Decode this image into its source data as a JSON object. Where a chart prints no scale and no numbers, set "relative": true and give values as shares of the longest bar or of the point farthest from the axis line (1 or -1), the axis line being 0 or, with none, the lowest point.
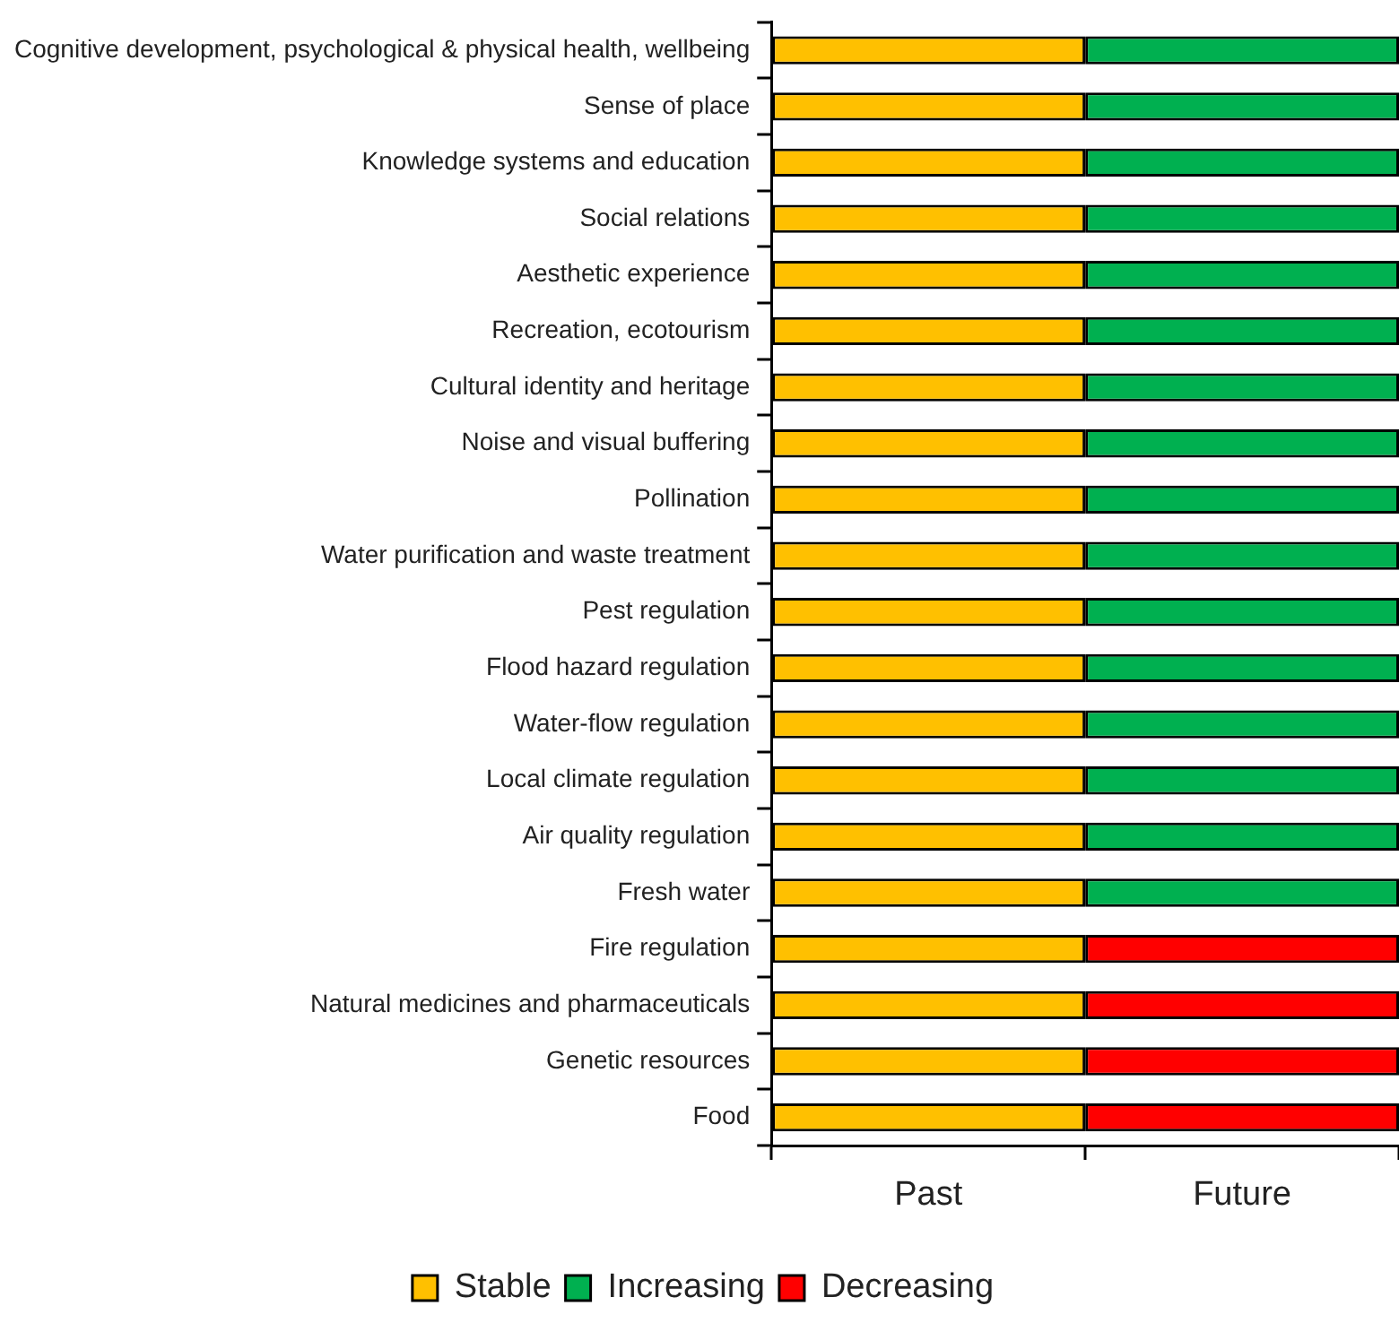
{
  "chart_data": {
    "type": "bar",
    "orientation": "horizontal",
    "stacked": true,
    "relative": true,
    "legend": "bottom",
    "grid": false,
    "categories": [
      "Cognitive development, psychological & physical health, wellbeing",
      "Sense of place",
      "Knowledge systems and education",
      "Social relations",
      "Aesthetic experience",
      "Recreation, ecotourism",
      "Cultural identity and heritage",
      "Noise and visual buffering",
      "Pollination",
      "Water purification and waste treatment",
      "Pest regulation",
      "Flood hazard regulation",
      "Water-flow regulation",
      "Local climate regulation",
      "Air quality regulation",
      "Fresh water",
      "Fire regulation",
      "Natural medicines and pharmaceuticals",
      "Genetic resources",
      "Food"
    ],
    "series": [
      {
        "name": "Stable",
        "color": "#ffc000",
        "values": [
          0.5,
          0.5,
          0.5,
          0.5,
          0.5,
          0.5,
          0.5,
          0.5,
          0.5,
          0.5,
          0.5,
          0.5,
          0.5,
          0.5,
          0.5,
          0.5,
          0.5,
          0.5,
          0.5,
          0.5
        ]
      },
      {
        "name": "Increasing",
        "color": "#00b050",
        "values": [
          0.5,
          0.5,
          0.5,
          0.5,
          0.5,
          0.5,
          0.5,
          0.5,
          0.5,
          0.5,
          0.5,
          0.5,
          0.5,
          0.5,
          0.5,
          0.5,
          null,
          null,
          null,
          null
        ]
      },
      {
        "name": "Decreasing",
        "color": "#ff0000",
        "values": [
          null,
          null,
          null,
          null,
          null,
          null,
          null,
          null,
          null,
          null,
          null,
          null,
          null,
          null,
          null,
          null,
          0.5,
          0.5,
          0.5,
          0.5
        ]
      }
    ],
    "annotations": [
      "Past",
      "Future"
    ]
  }
}
